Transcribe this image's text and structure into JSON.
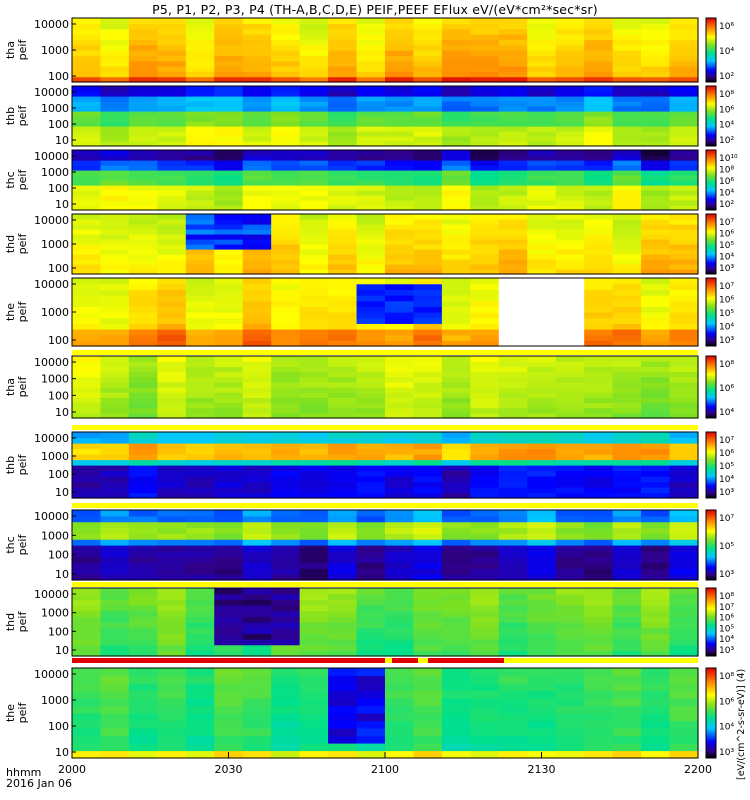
{
  "title": "P5, P1, P2, P3, P4 (TH-A,B,C,D,E) PEIF,PEEF EFlux eV/(eV*cm²*sec*sr)",
  "footer": {
    "time_label": "hhmm",
    "date": "2016 Jan 06"
  },
  "colorbar_units": "[eV/(cm^2-s-sr-eV)] (4)",
  "chart_data": {
    "type": "heatmap",
    "x_axis": {
      "ticks": [
        "2000",
        "2030",
        "2100",
        "2130",
        "2200"
      ]
    },
    "yscale": "log",
    "panels": [
      {
        "ylabel": [
          "tha",
          "peif"
        ],
        "yticks": [
          "10000",
          "1000",
          "100"
        ],
        "cbar_ticks": [
          "10⁶",
          "10⁴",
          "10²"
        ]
      },
      {
        "ylabel": [
          "thb",
          "peif"
        ],
        "yticks": [
          "10000",
          "1000",
          "100",
          "10"
        ],
        "cbar_ticks": [
          "10⁸",
          "10⁶",
          "10⁴",
          "10²"
        ]
      },
      {
        "ylabel": [
          "thc",
          "peif"
        ],
        "yticks": [
          "10000",
          "1000",
          "100",
          "10"
        ],
        "cbar_ticks": [
          "10¹⁰",
          "10⁸",
          "10⁶",
          "10⁴",
          "10²"
        ]
      },
      {
        "ylabel": [
          "thd",
          "peif"
        ],
        "yticks": [
          "10000",
          "1000",
          "100"
        ],
        "cbar_ticks": [
          "10⁷",
          "10⁶",
          "10⁵",
          "10⁴",
          "10³"
        ]
      },
      {
        "ylabel": [
          "the",
          "peif"
        ],
        "yticks": [
          "10000",
          "1000",
          "100"
        ],
        "cbar_ticks": [
          "10⁷",
          "10⁶",
          "10⁵",
          "10⁴",
          "10³"
        ]
      },
      {
        "ylabel": [
          "tha",
          "peif"
        ],
        "yticks": [
          "10000",
          "1000",
          "100",
          "10"
        ],
        "cbar_ticks": [
          "10⁸",
          "10⁶",
          "10⁴"
        ]
      },
      {
        "ylabel": [
          "thb",
          "peif"
        ],
        "yticks": [
          "10000",
          "1000",
          "100",
          "10"
        ],
        "cbar_ticks": [
          "10⁷",
          "10⁶",
          "10⁵",
          "10⁴",
          "10³"
        ]
      },
      {
        "ylabel": [
          "thc",
          "peif"
        ],
        "yticks": [
          "10000",
          "1000",
          "100",
          "10"
        ],
        "cbar_ticks": [
          "10⁷",
          "10⁵",
          "10³"
        ]
      },
      {
        "ylabel": [
          "thd",
          "peif"
        ],
        "yticks": [
          "10000",
          "1000",
          "100",
          "10"
        ],
        "cbar_ticks": [
          "10⁸",
          "10⁷",
          "10⁶",
          "10⁵",
          "10⁴",
          "10³"
        ]
      },
      {
        "ylabel": [
          "the",
          "peif"
        ],
        "yticks": [
          "10000",
          "1000",
          "100",
          "10"
        ],
        "cbar_ticks": [
          "10⁸",
          "10⁶",
          "10⁴",
          "10³"
        ]
      }
    ]
  }
}
